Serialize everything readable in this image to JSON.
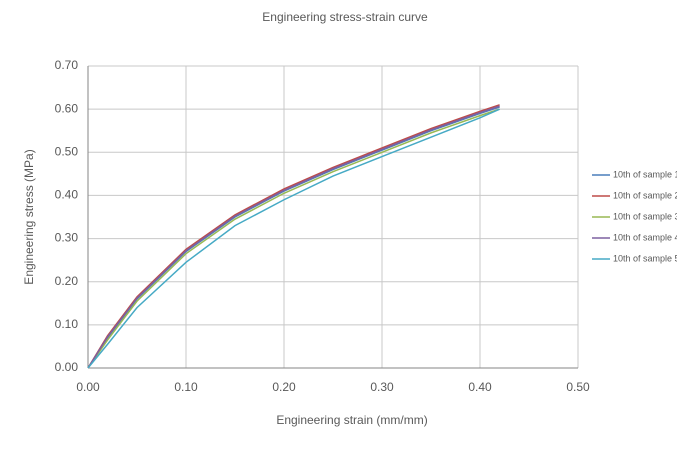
{
  "chart_data": {
    "type": "line",
    "title": "Engineering stress-strain curve",
    "x_label": "Engineering strain (mm/mm)",
    "y_label": "Engineering stress (MPa)",
    "x": [
      0,
      0.02,
      0.05,
      0.1,
      0.15,
      0.2,
      0.25,
      0.3,
      0.35,
      0.4,
      0.42
    ],
    "series": [
      {
        "name": "10th of sample 1",
        "color": "#4a7ebb",
        "values": [
          0,
          0.07,
          0.16,
          0.27,
          0.35,
          0.41,
          0.46,
          0.505,
          0.55,
          0.59,
          0.605
        ]
      },
      {
        "name": "10th of sample 2",
        "color": "#be4b48",
        "values": [
          0,
          0.075,
          0.165,
          0.275,
          0.355,
          0.415,
          0.465,
          0.51,
          0.555,
          0.595,
          0.61
        ]
      },
      {
        "name": "10th of sample 3",
        "color": "#98b954",
        "values": [
          0,
          0.065,
          0.155,
          0.265,
          0.345,
          0.405,
          0.455,
          0.5,
          0.545,
          0.585,
          0.6
        ]
      },
      {
        "name": "10th of sample 4",
        "color": "#7d60a0",
        "values": [
          0,
          0.072,
          0.162,
          0.272,
          0.352,
          0.412,
          0.462,
          0.507,
          0.552,
          0.592,
          0.607
        ]
      },
      {
        "name": "10th of sample 5",
        "color": "#46aac5",
        "values": [
          0,
          0.055,
          0.14,
          0.245,
          0.33,
          0.39,
          0.445,
          0.49,
          0.535,
          0.58,
          0.6
        ]
      }
    ],
    "xlim": [
      0,
      0.5
    ],
    "ylim": [
      0,
      0.7
    ],
    "xticks": [
      {
        "value": 0,
        "label": "0.00"
      },
      {
        "value": 0.1,
        "label": "0.10"
      },
      {
        "value": 0.2,
        "label": "0.20"
      },
      {
        "value": 0.3,
        "label": "0.30"
      },
      {
        "value": 0.4,
        "label": "0.40"
      },
      {
        "value": 0.5,
        "label": "0.50"
      }
    ],
    "yticks": [
      {
        "value": 0,
        "label": "0.00"
      },
      {
        "value": 0.1,
        "label": "0.10"
      },
      {
        "value": 0.2,
        "label": "0.20"
      },
      {
        "value": 0.3,
        "label": "0.30"
      },
      {
        "value": 0.4,
        "label": "0.40"
      },
      {
        "value": 0.5,
        "label": "0.50"
      },
      {
        "value": 0.6,
        "label": "0.60"
      },
      {
        "value": 0.7,
        "label": "0.70"
      }
    ],
    "grid": true
  }
}
